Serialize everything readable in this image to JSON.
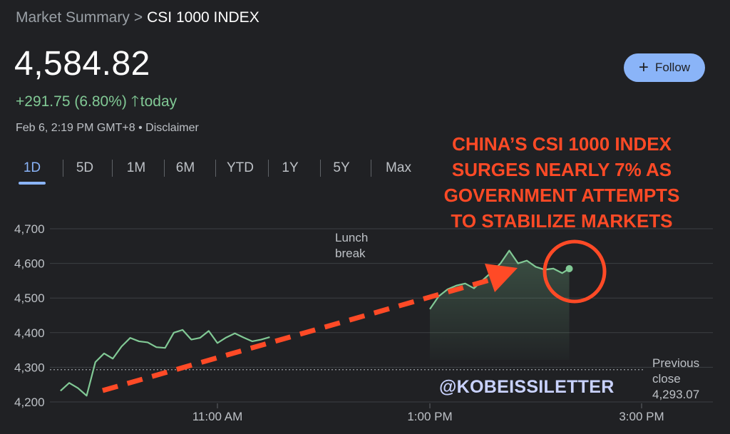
{
  "breadcrumb": {
    "parent": "Market Summary",
    "separator": ">",
    "current": "CSI 1000 INDEX"
  },
  "quote": {
    "price": "4,584.82",
    "change": "+291.75 (6.80%)",
    "change_icon": "arrow-up-icon",
    "period": "today",
    "timestamp": "Feb 6, 2:19 PM GMT+8",
    "bullet": "•",
    "disclaimer": "Disclaimer"
  },
  "follow_button": {
    "icon": "plus-icon",
    "label": "Follow"
  },
  "range_tabs": [
    {
      "label": "1D",
      "active": true
    },
    {
      "label": "5D",
      "active": false
    },
    {
      "label": "1M",
      "active": false
    },
    {
      "label": "6M",
      "active": false
    },
    {
      "label": "YTD",
      "active": false
    },
    {
      "label": "1Y",
      "active": false
    },
    {
      "label": "5Y",
      "active": false
    },
    {
      "label": "Max",
      "active": false
    }
  ],
  "headline": [
    "CHINA’S CSI 1000 INDEX",
    "SURGES NEARLY 7% AS",
    "GOVERNMENT ATTEMPTS",
    "TO STABILIZE MARKETS"
  ],
  "watermark": "@KOBEISSILETTER",
  "colors": {
    "background": "#202124",
    "up": "#81c995",
    "accent": "#8ab4f8",
    "annotation": "#ff4a26"
  },
  "chart_data": {
    "type": "line",
    "y_ticks": [
      "4,700",
      "4,600",
      "4,500",
      "4,400",
      "4,300",
      "4,200"
    ],
    "x_ticks": [
      "11:00 AM",
      "1:00 PM",
      "3:00 PM"
    ],
    "lunch_label": [
      "Lunch",
      "break"
    ],
    "previous_close_label": [
      "Previous",
      "close"
    ],
    "previous_close": 4293.07,
    "previous_close_text": "4,293.07",
    "ylim": [
      4200,
      4700
    ],
    "grid": true,
    "last_value": 4584.82,
    "morning": [
      [
        "09:30",
        4232
      ],
      [
        "09:35",
        4255
      ],
      [
        "09:40",
        4240
      ],
      [
        "09:45",
        4218
      ],
      [
        "09:50",
        4315
      ],
      [
        "09:55",
        4340
      ],
      [
        "10:00",
        4325
      ],
      [
        "10:05",
        4360
      ],
      [
        "10:10",
        4385
      ],
      [
        "10:15",
        4375
      ],
      [
        "10:20",
        4372
      ],
      [
        "10:25",
        4358
      ],
      [
        "10:30",
        4356
      ],
      [
        "10:35",
        4400
      ],
      [
        "10:40",
        4408
      ],
      [
        "10:45",
        4380
      ],
      [
        "10:50",
        4385
      ],
      [
        "10:55",
        4405
      ],
      [
        "11:00",
        4370
      ],
      [
        "11:05",
        4386
      ],
      [
        "11:10",
        4398
      ],
      [
        "11:15",
        4386
      ],
      [
        "11:20",
        4375
      ],
      [
        "11:25",
        4380
      ],
      [
        "11:30",
        4387
      ]
    ],
    "afternoon": [
      [
        "13:00",
        4468
      ],
      [
        "13:05",
        4505
      ],
      [
        "13:10",
        4525
      ],
      [
        "13:15",
        4536
      ],
      [
        "13:20",
        4542
      ],
      [
        "13:25",
        4528
      ],
      [
        "13:30",
        4552
      ],
      [
        "13:35",
        4575
      ],
      [
        "13:40",
        4600
      ],
      [
        "13:45",
        4637
      ],
      [
        "13:50",
        4600
      ],
      [
        "13:55",
        4608
      ],
      [
        "14:00",
        4590
      ],
      [
        "14:05",
        4582
      ],
      [
        "14:10",
        4585
      ],
      [
        "14:15",
        4572
      ],
      [
        "14:19",
        4584.82
      ]
    ]
  }
}
